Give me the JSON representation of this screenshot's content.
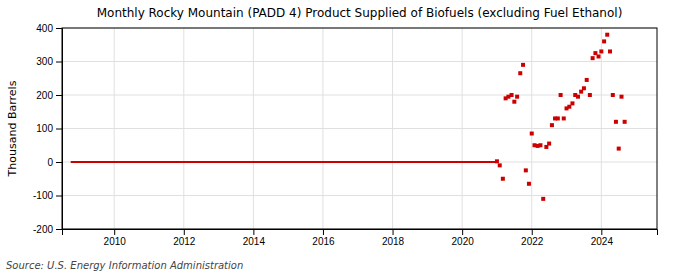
{
  "chart_data": {
    "type": "scatter",
    "title": "Monthly Rocky Mountain (PADD 4) Product Supplied of Biofuels (excluding Fuel Ethanol)",
    "ylabel": "Thousand Barrels",
    "annotation": "Source: U.S. Energy Information Administration",
    "xlim": [
      2008.5,
      2025.6
    ],
    "xticks": [
      2010,
      2012,
      2014,
      2016,
      2018,
      2020,
      2022,
      2024
    ],
    "ylim": [
      -200,
      400
    ],
    "yticks": [
      -200,
      -100,
      0,
      100,
      200,
      300,
      400
    ],
    "grid": true,
    "series": [
      {
        "type": "line",
        "color": "#cc0000",
        "line_style": "solid",
        "x": [
          2008.75,
          2021.0
        ],
        "values": [
          0,
          0
        ]
      },
      {
        "type": "scatter",
        "color": "#cc0000",
        "marker": "square",
        "x": [
          2021.0,
          2021.08,
          2021.17,
          2021.25,
          2021.33,
          2021.42,
          2021.5,
          2021.58,
          2021.67,
          2021.75,
          2021.83,
          2021.92,
          2022.0,
          2022.08,
          2022.17,
          2022.25,
          2022.33,
          2022.42,
          2022.5,
          2022.58,
          2022.67,
          2022.75,
          2022.83,
          2022.92,
          2023.0,
          2023.08,
          2023.17,
          2023.25,
          2023.33,
          2023.42,
          2023.5,
          2023.58,
          2023.67,
          2023.75,
          2023.83,
          2023.92,
          2024.0,
          2024.08,
          2024.17,
          2024.25,
          2024.33,
          2024.42,
          2024.5,
          2024.58,
          2024.67
        ],
        "values": [
          2,
          -10,
          -50,
          190,
          195,
          200,
          180,
          195,
          265,
          290,
          -25,
          -65,
          85,
          50,
          48,
          50,
          -110,
          45,
          55,
          110,
          130,
          130,
          200,
          130,
          160,
          165,
          175,
          200,
          195,
          210,
          220,
          245,
          200,
          310,
          325,
          315,
          330,
          360,
          380,
          330,
          200,
          120,
          40,
          195,
          120
        ]
      }
    ]
  }
}
